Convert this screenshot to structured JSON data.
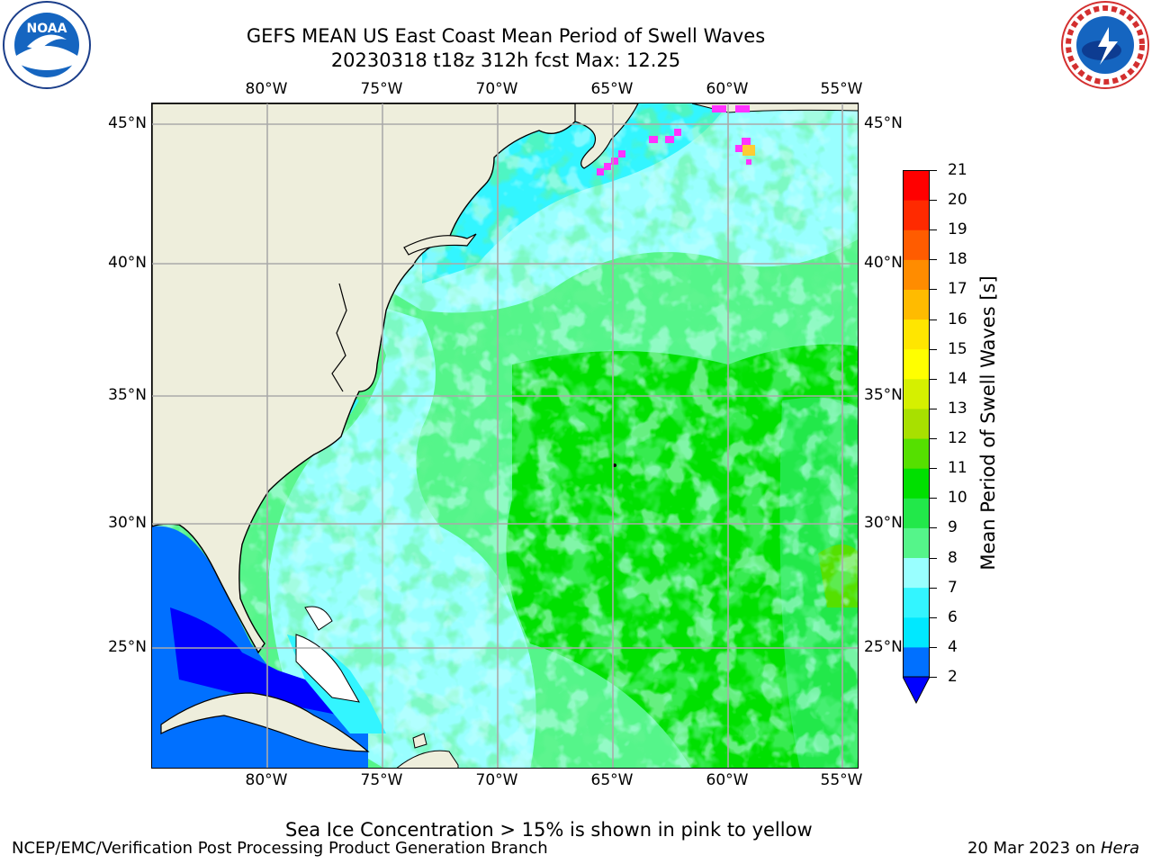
{
  "header": {
    "title_line1": "GEFS MEAN US East Coast Mean Period of Swell Waves",
    "title_line2": "20230318 t18z 312h fcst   Max: 12.25"
  },
  "logos": {
    "left": {
      "name": "noaa-logo",
      "text": "NOAA"
    },
    "right": {
      "name": "national-weather-service-logo",
      "text": "NATIONAL WEATHER SERVICE"
    }
  },
  "axes": {
    "lon_labels": [
      "80°W",
      "75°W",
      "70°W",
      "65°W",
      "60°W",
      "55°W"
    ],
    "lat_labels": [
      "45°N",
      "40°N",
      "35°N",
      "30°N",
      "25°N"
    ]
  },
  "colorbar": {
    "title": "Mean Period of Swell Waves [s]",
    "ticks": [
      "2",
      "4",
      "6",
      "7",
      "8",
      "9",
      "10",
      "11",
      "12",
      "13",
      "14",
      "15",
      "16",
      "17",
      "18",
      "19",
      "20",
      "21"
    ],
    "colors": [
      "#0000ff",
      "#0070ff",
      "#00e8ff",
      "#33f5ff",
      "#99ffff",
      "#55f58a",
      "#22e84a",
      "#00e000",
      "#55e000",
      "#a8e000",
      "#d5f000",
      "#ffff00",
      "#ffe600",
      "#ffbb00",
      "#ff8c00",
      "#ff5c00",
      "#ff2a00",
      "#ff0000"
    ],
    "extend_color": "#0000ff"
  },
  "map": {
    "land_color": "#eeeedc",
    "sea_ice_color": "#ff33ff"
  },
  "footer": {
    "note": "Sea Ice Concentration > 15% is shown in pink to yellow",
    "left": "NCEP/EMC/Verification Post Processing Product Generation Branch",
    "right_date": "20 Mar 2023 on ",
    "right_machine": "Hera"
  }
}
